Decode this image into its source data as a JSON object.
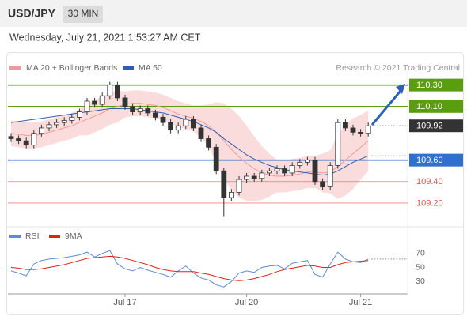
{
  "header": {
    "symbol": "USD/JPY",
    "interval": "30 MIN",
    "timestamp": "Wednesday, July 21, 2021 1:53:27 AM CET",
    "credit": "Research © 2021 Trading Central"
  },
  "chart_data": [
    {
      "type": "candlestick",
      "ylim": [
        109.03,
        110.43
      ],
      "open": [
        109.82,
        109.8,
        109.78,
        109.74,
        109.85,
        109.9,
        109.93,
        109.95,
        109.97,
        110.0,
        110.05,
        110.15,
        110.12,
        110.2,
        110.3,
        110.18,
        110.1,
        110.05,
        110.08,
        110.04,
        110.0,
        109.95,
        109.88,
        109.92,
        109.98,
        109.9,
        109.8,
        109.72,
        109.5,
        109.25,
        109.3,
        109.42,
        109.45,
        109.43,
        109.48,
        109.5,
        109.52,
        109.48,
        109.55,
        109.58,
        109.6,
        109.4,
        109.35,
        109.55,
        109.95,
        109.9,
        109.86,
        109.85
      ],
      "high": [
        109.85,
        109.83,
        109.81,
        109.88,
        109.93,
        109.96,
        109.98,
        110.0,
        110.03,
        110.08,
        110.18,
        110.18,
        110.23,
        110.33,
        110.33,
        110.21,
        110.13,
        110.11,
        110.11,
        110.07,
        110.03,
        109.98,
        109.95,
        110.01,
        110.01,
        109.93,
        109.83,
        109.75,
        109.53,
        109.33,
        109.45,
        109.48,
        109.48,
        109.51,
        109.53,
        109.55,
        109.55,
        109.58,
        109.61,
        109.63,
        109.63,
        109.43,
        109.58,
        109.98,
        109.98,
        109.93,
        109.89,
        109.95
      ],
      "low": [
        109.77,
        109.75,
        109.71,
        109.71,
        109.82,
        109.87,
        109.9,
        109.92,
        109.94,
        109.97,
        110.02,
        110.09,
        110.09,
        110.17,
        110.15,
        110.07,
        110.02,
        110.02,
        110.01,
        109.97,
        109.92,
        109.85,
        109.85,
        109.89,
        109.87,
        109.77,
        109.69,
        109.47,
        109.07,
        109.22,
        109.27,
        109.39,
        109.4,
        109.4,
        109.45,
        109.47,
        109.45,
        109.45,
        109.52,
        109.55,
        109.37,
        109.32,
        109.32,
        109.52,
        109.87,
        109.83,
        109.82,
        109.82
      ],
      "close": [
        109.8,
        109.78,
        109.74,
        109.85,
        109.9,
        109.93,
        109.95,
        109.97,
        110.0,
        110.05,
        110.15,
        110.12,
        110.2,
        110.3,
        110.18,
        110.1,
        110.05,
        110.08,
        110.04,
        110.0,
        109.95,
        109.88,
        109.92,
        109.98,
        109.9,
        109.8,
        109.72,
        109.5,
        109.25,
        109.3,
        109.42,
        109.45,
        109.43,
        109.48,
        109.5,
        109.52,
        109.48,
        109.55,
        109.58,
        109.6,
        109.4,
        109.35,
        109.55,
        109.95,
        109.9,
        109.86,
        109.85,
        109.92
      ],
      "series": [
        {
          "name": "MA 20 + Bollinger Bands",
          "color": "#f29a9a",
          "values": [
            109.85,
            109.84,
            109.83,
            109.83,
            109.84,
            109.86,
            109.88,
            109.9,
            109.92,
            109.95,
            109.98,
            110.01,
            110.04,
            110.08,
            110.1,
            110.12,
            110.13,
            110.13,
            110.12,
            110.11,
            110.09,
            110.06,
            110.03,
            110.01,
            109.99,
            109.96,
            109.92,
            109.86,
            109.78,
            109.7,
            109.63,
            109.57,
            109.52,
            109.48,
            109.46,
            109.45,
            109.45,
            109.46,
            109.47,
            109.49,
            109.49,
            109.48,
            109.49,
            109.54,
            109.6,
            109.66,
            109.72,
            109.78
          ],
          "upper": [
            109.97,
            109.96,
            109.95,
            109.95,
            109.96,
            109.98,
            110.0,
            110.02,
            110.04,
            110.07,
            110.13,
            110.16,
            110.19,
            110.23,
            110.25,
            110.24,
            110.25,
            110.25,
            110.24,
            110.23,
            110.21,
            110.18,
            110.15,
            110.13,
            110.11,
            110.11,
            110.12,
            110.14,
            110.13,
            110.08,
            110.01,
            109.92,
            109.82,
            109.73,
            109.66,
            109.6,
            109.6,
            109.61,
            109.62,
            109.64,
            109.64,
            109.66,
            109.69,
            109.84,
            109.93,
            109.99,
            110.02,
            110.06
          ],
          "lower": [
            109.73,
            109.72,
            109.71,
            109.71,
            109.72,
            109.74,
            109.76,
            109.78,
            109.8,
            109.83,
            109.83,
            109.86,
            109.89,
            109.93,
            109.95,
            110.0,
            110.01,
            110.01,
            110.0,
            109.99,
            109.97,
            109.94,
            109.91,
            109.89,
            109.87,
            109.81,
            109.72,
            109.58,
            109.43,
            109.32,
            109.25,
            109.22,
            109.22,
            109.23,
            109.26,
            109.3,
            109.3,
            109.31,
            109.32,
            109.34,
            109.34,
            109.3,
            109.29,
            109.24,
            109.27,
            109.33,
            109.42,
            109.5
          ]
        },
        {
          "name": "MA 50",
          "color": "#2f5fb3",
          "values": [
            109.95,
            109.96,
            109.97,
            109.98,
            109.99,
            110.0,
            110.01,
            110.02,
            110.03,
            110.04,
            110.05,
            110.06,
            110.07,
            110.08,
            110.08,
            110.08,
            110.08,
            110.07,
            110.06,
            110.05,
            110.04,
            110.02,
            110.0,
            109.98,
            109.96,
            109.93,
            109.9,
            109.86,
            109.8,
            109.75,
            109.7,
            109.65,
            109.61,
            109.58,
            109.55,
            109.53,
            109.51,
            109.5,
            109.49,
            109.48,
            109.47,
            109.46,
            109.47,
            109.5,
            109.54,
            109.58,
            109.61,
            109.64
          ]
        }
      ],
      "levels": [
        {
          "value": 110.3,
          "label": "110.30",
          "color": "#5a9e0f",
          "boxed": true
        },
        {
          "value": 110.1,
          "label": "110.10",
          "color": "#5a9e0f",
          "boxed": true
        },
        {
          "value": 109.92,
          "label": "109.92",
          "color": "#333333",
          "boxed": true
        },
        {
          "value": 109.6,
          "label": "109.60",
          "color": "#2f6fd0",
          "boxed": true
        },
        {
          "value": 109.4,
          "label": "109.40",
          "color": "#e05050",
          "boxed": false
        },
        {
          "value": 109.2,
          "label": "109.20",
          "color": "#e05050",
          "boxed": false
        }
      ]
    },
    {
      "type": "line",
      "categories": [
        null,
        null,
        null,
        null,
        null,
        null,
        null,
        null,
        null,
        null,
        null,
        null,
        null,
        null,
        null,
        "Jul 17",
        null,
        null,
        null,
        null,
        null,
        null,
        null,
        null,
        null,
        null,
        null,
        null,
        null,
        null,
        null,
        "Jul 20",
        null,
        null,
        null,
        null,
        null,
        null,
        null,
        null,
        null,
        null,
        null,
        null,
        null,
        null,
        "Jul 21",
        null
      ],
      "ylim": [
        20,
        80
      ],
      "yticks": [
        70,
        50,
        30
      ],
      "series": [
        {
          "name": "RSI",
          "color": "#5b8bd8",
          "values": [
            45,
            42,
            38,
            55,
            60,
            62,
            63,
            64,
            66,
            68,
            72,
            65,
            70,
            74,
            55,
            48,
            45,
            50,
            46,
            43,
            40,
            36,
            45,
            52,
            42,
            35,
            32,
            25,
            22,
            30,
            42,
            45,
            43,
            50,
            52,
            53,
            48,
            56,
            58,
            60,
            40,
            36,
            55,
            72,
            62,
            58,
            57,
            62
          ]
        },
        {
          "name": "9MA",
          "color": "#e0201b",
          "values": [
            50,
            49,
            47,
            47,
            48,
            50,
            52,
            54,
            57,
            60,
            63,
            64,
            65,
            66,
            65,
            63,
            60,
            57,
            54,
            50,
            47,
            45,
            44,
            44,
            44,
            42,
            40,
            37,
            34,
            32,
            31,
            32,
            34,
            37,
            40,
            44,
            47,
            49,
            51,
            53,
            52,
            50,
            50,
            54,
            57,
            58,
            59,
            60
          ]
        }
      ]
    }
  ]
}
